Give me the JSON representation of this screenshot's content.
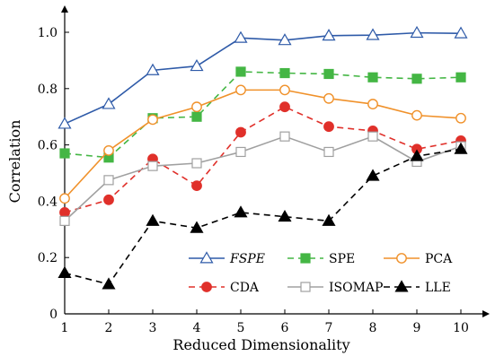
{
  "chart_data": {
    "type": "line",
    "xlabel": "Reduced Dimensionality",
    "ylabel": "Correlation",
    "x": [
      1,
      2,
      3,
      4,
      5,
      6,
      7,
      8,
      9,
      10
    ],
    "xlim": [
      1,
      10
    ],
    "ylim": [
      0,
      1.05
    ],
    "xticks": [
      "1",
      "2",
      "3",
      "4",
      "5",
      "6",
      "7",
      "8",
      "9",
      "10"
    ],
    "yticks": [
      "0",
      "0.2",
      "0.4",
      "0.6",
      "0.8",
      "1.0"
    ],
    "ytick_values": [
      0,
      0.2,
      0.4,
      0.6,
      0.8,
      1.0
    ],
    "grid": false,
    "legend_position": "bottom-right",
    "series": [
      {
        "name": "FSPE",
        "color": "#2e5aa8",
        "dash": "solid",
        "marker": "triangle-open",
        "italic": true,
        "values": [
          0.675,
          0.745,
          0.865,
          0.88,
          0.98,
          0.972,
          0.988,
          0.99,
          0.998,
          0.996
        ]
      },
      {
        "name": "SPE",
        "color": "#44b644",
        "dash": "dashed",
        "marker": "square-filled",
        "italic": false,
        "values": [
          0.57,
          0.555,
          0.695,
          0.7,
          0.86,
          0.855,
          0.852,
          0.84,
          0.835,
          0.84
        ]
      },
      {
        "name": "PCA",
        "color": "#f0912a",
        "dash": "solid",
        "marker": "circle-open",
        "italic": false,
        "values": [
          0.41,
          0.58,
          0.69,
          0.735,
          0.795,
          0.795,
          0.765,
          0.745,
          0.705,
          0.695
        ]
      },
      {
        "name": "CDA",
        "color": "#e0302a",
        "dash": "dashed",
        "marker": "circle-filled",
        "italic": false,
        "values": [
          0.36,
          0.405,
          0.55,
          0.455,
          0.645,
          0.735,
          0.665,
          0.65,
          0.585,
          0.615
        ]
      },
      {
        "name": "ISOMAP",
        "color": "#a0a0a0",
        "dash": "solid",
        "marker": "square-open",
        "italic": false,
        "values": [
          0.33,
          0.475,
          0.525,
          0.535,
          0.575,
          0.63,
          0.575,
          0.63,
          0.54,
          0.595
        ]
      },
      {
        "name": "LLE",
        "color": "#000000",
        "dash": "dashed",
        "marker": "triangle-filled",
        "italic": false,
        "values": [
          0.145,
          0.105,
          0.33,
          0.305,
          0.36,
          0.345,
          0.33,
          0.49,
          0.56,
          0.585
        ]
      }
    ]
  }
}
